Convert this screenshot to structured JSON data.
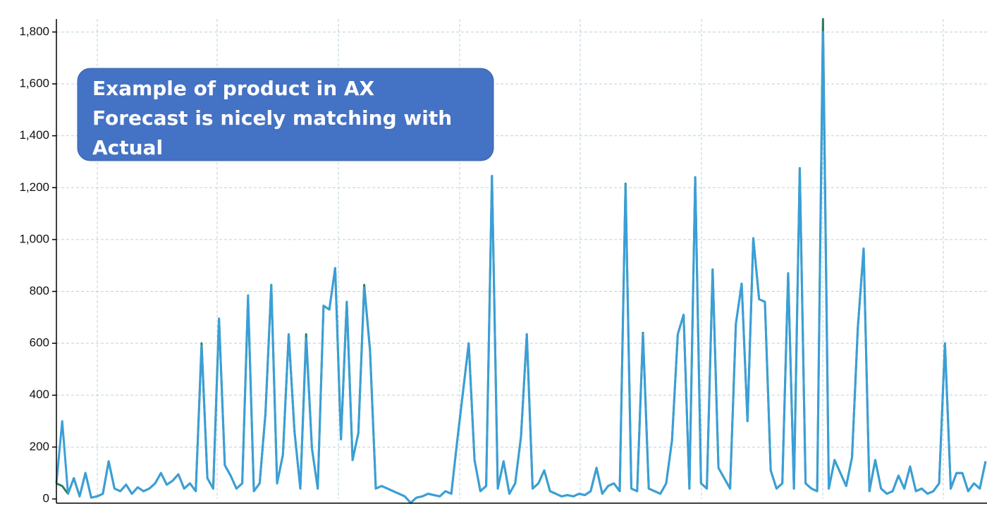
{
  "chart_data": {
    "type": "line",
    "annotation": [
      "Example of product in AX",
      "Forecast is nicely matching with",
      "Actual"
    ],
    "ylim": [
      0,
      1850
    ],
    "yticks": [
      0,
      200,
      400,
      600,
      800,
      {
        "value": 1000,
        "label": "1,000"
      },
      {
        "value": 1200,
        "label": "1,200"
      },
      {
        "value": 1400,
        "label": "1,400"
      },
      {
        "value": 1600,
        "label": "1,600"
      },
      {
        "value": 1800,
        "label": "1,800"
      }
    ],
    "grid": true,
    "series": [
      {
        "color": "#2e7d5b",
        "values": [
          60,
          50,
          20,
          80,
          10,
          100,
          5,
          10,
          20,
          145,
          40,
          30,
          55,
          20,
          45,
          30,
          40,
          60,
          100,
          55,
          70,
          95,
          40,
          60,
          30,
          600,
          80,
          40,
          695,
          130,
          90,
          40,
          60,
          770,
          30,
          60,
          330,
          825,
          60,
          170,
          635,
          260,
          40,
          635,
          195,
          40,
          745,
          730,
          890,
          230,
          760,
          150,
          255,
          825,
          575,
          40,
          50,
          40,
          30,
          20,
          10,
          -15,
          5,
          10,
          20,
          15,
          10,
          30,
          20,
          220,
          410,
          600,
          150,
          30,
          50,
          1245,
          40,
          145,
          20,
          60,
          240,
          635,
          40,
          60,
          110,
          30,
          20,
          10,
          15,
          10,
          20,
          15,
          30,
          120,
          20,
          50,
          60,
          30,
          1215,
          40,
          30,
          640,
          40,
          30,
          20,
          60,
          225,
          635,
          710,
          40,
          1240,
          60,
          40,
          885,
          120,
          80,
          40,
          675,
          830,
          300,
          1005,
          770,
          760,
          110,
          40,
          60,
          870,
          40,
          1275,
          60,
          40,
          30,
          1850,
          40,
          150,
          100,
          50,
          160,
          660,
          965,
          30,
          150,
          40,
          20,
          30,
          90,
          40,
          125,
          30,
          40,
          20,
          30,
          60,
          600,
          40,
          100,
          100,
          30,
          60,
          40,
          145
        ]
      },
      {
        "color": "#3a9fd8",
        "values": [
          60,
          300,
          20,
          80,
          10,
          100,
          5,
          10,
          20,
          145,
          40,
          30,
          55,
          20,
          45,
          30,
          40,
          60,
          100,
          55,
          70,
          95,
          40,
          60,
          30,
          590,
          80,
          40,
          695,
          130,
          90,
          40,
          60,
          785,
          30,
          60,
          330,
          825,
          60,
          170,
          635,
          260,
          40,
          620,
          195,
          40,
          745,
          730,
          890,
          230,
          760,
          150,
          255,
          815,
          575,
          40,
          50,
          40,
          30,
          20,
          10,
          -15,
          5,
          10,
          20,
          15,
          10,
          30,
          20,
          220,
          410,
          600,
          150,
          30,
          50,
          1245,
          40,
          145,
          20,
          60,
          240,
          635,
          40,
          60,
          110,
          30,
          20,
          10,
          15,
          10,
          20,
          15,
          30,
          120,
          20,
          50,
          60,
          30,
          1210,
          40,
          30,
          635,
          40,
          30,
          20,
          60,
          225,
          635,
          710,
          40,
          1240,
          60,
          40,
          885,
          120,
          80,
          40,
          675,
          830,
          300,
          1005,
          770,
          760,
          110,
          40,
          60,
          870,
          40,
          1275,
          60,
          40,
          30,
          1800,
          40,
          150,
          100,
          50,
          160,
          660,
          965,
          30,
          150,
          40,
          20,
          30,
          90,
          40,
          125,
          30,
          40,
          20,
          30,
          60,
          600,
          40,
          100,
          100,
          30,
          60,
          40,
          145
        ]
      }
    ]
  }
}
